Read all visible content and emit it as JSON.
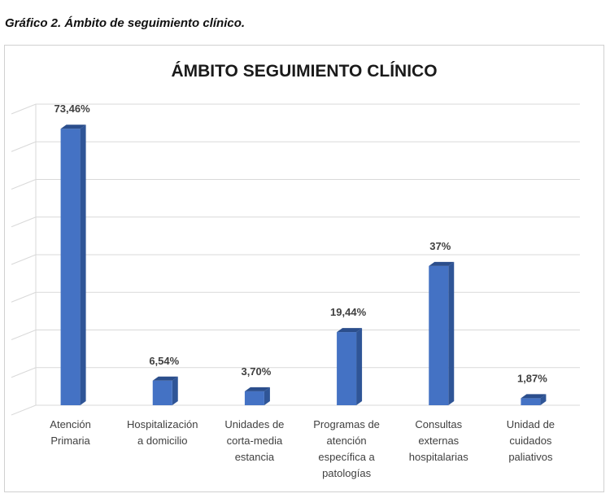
{
  "caption": "Gráfico 2. Ámbito de seguimiento clínico.",
  "chart_data": {
    "type": "bar",
    "title": "ÁMBITO SEGUIMIENTO CLÍNICO",
    "categories": [
      [
        "Atención",
        "Primaria"
      ],
      [
        "Hospitalización",
        "a domicilio"
      ],
      [
        "Unidades de",
        "corta-media",
        "estancia"
      ],
      [
        "Programas de",
        "atención",
        "específica a",
        "patologías"
      ],
      [
        "Consultas",
        "externas",
        "hospitalarias"
      ],
      [
        "Unidad de",
        "cuidados",
        "paliativos"
      ]
    ],
    "values": [
      73.46,
      6.54,
      3.7,
      19.44,
      37,
      1.87
    ],
    "data_labels": [
      "73,46%",
      "6,54%",
      "3,70%",
      "19,44%",
      "37%",
      "1,87%"
    ],
    "ylim": [
      0,
      80
    ],
    "grid": true,
    "colors": {
      "bar_front": "#4472C4",
      "bar_side": "#2F5597",
      "bar_top": "#2B4E8C",
      "grid": "#d9d9d9"
    }
  }
}
